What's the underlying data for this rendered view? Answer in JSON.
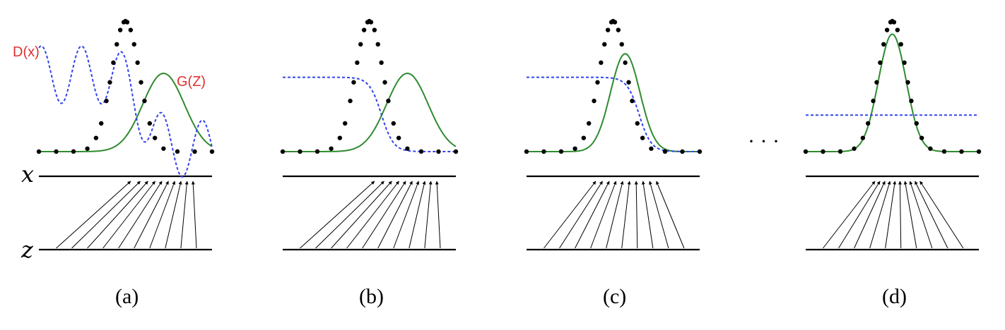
{
  "figure": {
    "panels": [
      {
        "caption": "(a)",
        "data_mean": 0.5,
        "data_std": 0.08,
        "gen_mean": 0.72,
        "gen_std": 0.12,
        "gen_peak": 0.6,
        "disc": {
          "kind": "wavy"
        },
        "mapping": "shifted"
      },
      {
        "caption": "(b)",
        "data_mean": 0.5,
        "data_std": 0.08,
        "gen_mean": 0.72,
        "gen_std": 0.12,
        "gen_peak": 0.6,
        "disc": {
          "kind": "sigmoid",
          "high": 0.57,
          "low": 0,
          "center": 0.57,
          "scale": 0.035
        },
        "mapping": "shifted"
      },
      {
        "caption": "(c)",
        "data_mean": 0.5,
        "data_std": 0.08,
        "gen_mean": 0.57,
        "gen_std": 0.085,
        "gen_peak": 0.75,
        "disc": {
          "kind": "sigmoid",
          "high": 0.57,
          "low": 0,
          "center": 0.65,
          "scale": 0.035
        },
        "mapping": "converging"
      },
      {
        "caption": "(d)",
        "data_mean": 0.5,
        "data_std": 0.08,
        "gen_mean": 0.5,
        "gen_std": 0.08,
        "gen_peak": 0.9,
        "disc": {
          "kind": "flat",
          "level": 0.28
        },
        "mapping": "matched"
      }
    ],
    "axis_labels": {
      "x": "x",
      "z": "z"
    },
    "annotations": {
      "discriminator": "D(x)",
      "generator": "G(Z)"
    },
    "ellipsis": "· · ·",
    "colors": {
      "data": "#000000",
      "generator": "#2e8b2e",
      "discriminator": "#3344ee",
      "annotation": "#e03030",
      "axis": "#000000"
    }
  }
}
